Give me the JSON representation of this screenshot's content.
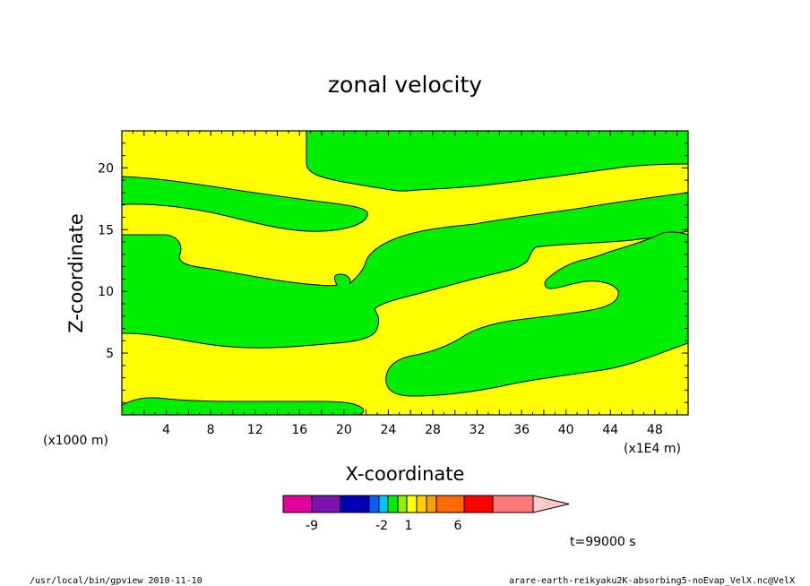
{
  "chart_data": {
    "type": "contour",
    "title": "zonal velocity",
    "xlabel": "X-coordinate",
    "ylabel": "Z-coordinate",
    "x_unit_left": "(x1000 m)",
    "x_unit_right": "(x1E4 m)",
    "xlim": [
      0,
      51
    ],
    "ylim": [
      0,
      23
    ],
    "xticks": [
      "4",
      "8",
      "12",
      "16",
      "20",
      "24",
      "28",
      "32",
      "36",
      "40",
      "44",
      "48"
    ],
    "yticks": [
      "5",
      "10",
      "15",
      "20"
    ],
    "fill_levels": [
      {
        "name": "yellow",
        "color": "#ffff00"
      },
      {
        "name": "green",
        "color": "#00ee00"
      }
    ],
    "colorbar": {
      "colors": [
        "#e0009c",
        "#7a12b0",
        "#0000b8",
        "#0a5cff",
        "#00c8ff",
        "#00ee00",
        "#90f000",
        "#ffff00",
        "#ffd000",
        "#ffa000",
        "#ff6a00",
        "#ff0000",
        "#ff7878",
        "#ffc8c8"
      ],
      "labels": [
        "-9",
        "-2",
        "1",
        "6"
      ]
    },
    "annotation_time": "t=99000 s",
    "footer_left": "/usr/local/bin/gpview  2010-11-10",
    "footer_right": "arare-earth-reikyaku2K-absorbing5-noEvap_VelX.nc@VelX"
  }
}
